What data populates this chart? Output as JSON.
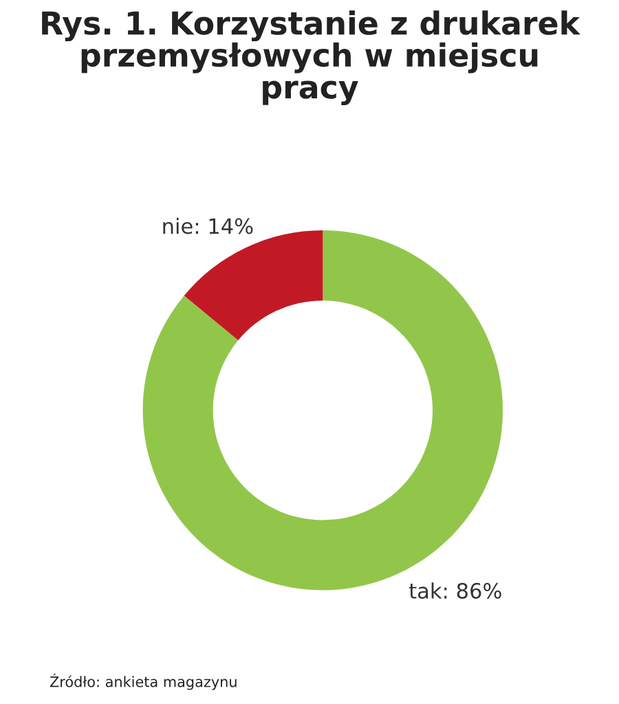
{
  "chart_data": {
    "type": "donut",
    "title": "Rys. 1. Korzystanie z drukarek\nprzemysłowych w miejscu\npracy",
    "categories": [
      "tak",
      "nie"
    ],
    "values": [
      86,
      14
    ],
    "colors": [
      "#92c64a",
      "#c21a24"
    ],
    "value_labels": [
      "86%",
      "14%"
    ],
    "annotations": [
      "Źródło: ankieta magazynu"
    ]
  }
}
